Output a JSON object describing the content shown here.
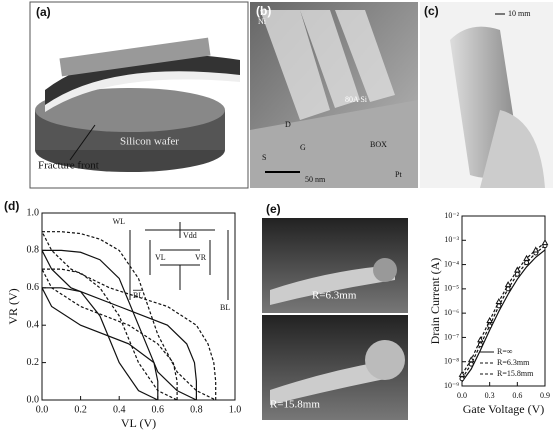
{
  "panels": {
    "a": {
      "label": "(a)",
      "wafer": "Silicon wafer",
      "front": "Fracture front"
    },
    "b": {
      "label": "(b)",
      "ni": "Ni",
      "si": "80A Si",
      "box": "BOX",
      "scale": "50 nm",
      "pt": "Pt",
      "g": "G",
      "s": "S",
      "d": "D"
    },
    "c": {
      "label": "(c)",
      "scale": "10 mm"
    },
    "e": {
      "label": "(e)",
      "r1": "R=6.3mm",
      "r2": "R=15.8mm"
    }
  },
  "chart_data": [
    {
      "type": "line",
      "label": "(d)",
      "xlabel": "VL (V)",
      "ylabel": "VR (V)",
      "annotations": {
        "wl": "WL",
        "bl": "BL",
        "blb": "BL",
        "vdd": "Vdd",
        "vl": "VL",
        "vr": "VR"
      },
      "xlim": [
        0,
        1
      ],
      "ylim": [
        0,
        1
      ],
      "xticks": [
        {
          "value": 0,
          "label": "0.0"
        },
        0.2,
        0.4,
        0.6,
        0.8,
        {
          "value": 1,
          "label": "1.0"
        }
      ],
      "yticks": [
        {
          "value": 0,
          "label": "0.0"
        },
        0.2,
        0.4,
        0.6,
        0.8,
        {
          "value": 1,
          "label": "1.0"
        }
      ],
      "series": [
        {
          "style": "solid",
          "color": "#111",
          "x": [
            0,
            0.1,
            0.2,
            0.3,
            0.4,
            0.5,
            0.6
          ],
          "values": [
            0.6,
            0.6,
            0.58,
            0.45,
            0.2,
            0.05,
            0
          ]
        },
        {
          "style": "solid",
          "color": "#111",
          "x": [
            0.6,
            0.6,
            0.58,
            0.45,
            0.2,
            0.05,
            0
          ],
          "values": [
            0,
            0.1,
            0.2,
            0.3,
            0.4,
            0.5,
            0.6
          ]
        },
        {
          "style": "dashed",
          "color": "#111",
          "x": [
            0,
            0.1,
            0.2,
            0.3,
            0.4,
            0.5,
            0.6,
            0.7
          ],
          "values": [
            0.7,
            0.7,
            0.68,
            0.6,
            0.45,
            0.2,
            0.05,
            0
          ]
        },
        {
          "style": "dashed",
          "color": "#111",
          "x": [
            0.7,
            0.7,
            0.68,
            0.6,
            0.45,
            0.2,
            0.05,
            0
          ],
          "values": [
            0,
            0.1,
            0.2,
            0.3,
            0.4,
            0.5,
            0.6,
            0.7
          ]
        },
        {
          "style": "solid",
          "color": "#111",
          "x": [
            0,
            0.1,
            0.2,
            0.3,
            0.4,
            0.5,
            0.6,
            0.7,
            0.8
          ],
          "values": [
            0.8,
            0.8,
            0.79,
            0.75,
            0.65,
            0.4,
            0.15,
            0.05,
            0
          ]
        },
        {
          "style": "solid",
          "color": "#111",
          "x": [
            0.8,
            0.8,
            0.79,
            0.75,
            0.65,
            0.4,
            0.15,
            0.05,
            0
          ],
          "values": [
            0,
            0.1,
            0.2,
            0.3,
            0.4,
            0.5,
            0.6,
            0.7,
            0.8
          ]
        },
        {
          "style": "dashed",
          "color": "#111",
          "x": [
            0,
            0.1,
            0.2,
            0.3,
            0.4,
            0.5,
            0.6,
            0.7,
            0.8,
            0.9
          ],
          "values": [
            0.9,
            0.9,
            0.89,
            0.86,
            0.8,
            0.65,
            0.35,
            0.15,
            0.05,
            0
          ]
        },
        {
          "style": "dashed",
          "color": "#111",
          "x": [
            0.9,
            0.9,
            0.89,
            0.86,
            0.8,
            0.65,
            0.35,
            0.15,
            0.05,
            0
          ],
          "values": [
            0,
            0.1,
            0.2,
            0.3,
            0.4,
            0.5,
            0.6,
            0.7,
            0.8,
            0.9
          ]
        }
      ]
    },
    {
      "type": "line",
      "log": true,
      "xlabel": "Gate Voltage (V)",
      "ylabel": "Drain Current (A)",
      "xlim": [
        0,
        0.9
      ],
      "ylim": [
        1e-09,
        0.01
      ],
      "xticks": [
        {
          "value": 0,
          "label": "0.0"
        },
        0.3,
        0.6,
        0.9
      ],
      "yticks": [
        {
          "value": 1e-09,
          "label": "10⁻⁹"
        },
        {
          "value": 1e-08,
          "label": "10⁻⁸"
        },
        {
          "value": 1e-07,
          "label": "10⁻⁷"
        },
        {
          "value": 1e-06,
          "label": "10⁻⁶"
        },
        {
          "value": 1e-05,
          "label": "10⁻⁵"
        },
        {
          "value": 0.0001,
          "label": "10⁻⁴"
        },
        {
          "value": 0.001,
          "label": "10⁻³"
        },
        {
          "value": 0.01,
          "label": "10⁻²"
        }
      ],
      "x": [
        0,
        0.1,
        0.2,
        0.3,
        0.4,
        0.5,
        0.6,
        0.7,
        0.8,
        0.9
      ],
      "series": [
        {
          "name": "R=∞",
          "style": "solid",
          "marker": "none",
          "color": "#111",
          "values": [
            1.5e-09,
            5e-09,
            3e-08,
            2e-07,
            1.2e-06,
            6e-06,
            2.5e-05,
            8e-05,
            0.0002,
            0.0004
          ]
        },
        {
          "name": "R=6.3mm",
          "style": "dashed",
          "marker": "circle",
          "color": "#111",
          "values": [
            2e-09,
            8e-09,
            5e-08,
            3e-07,
            2e-06,
            1e-05,
            4e-05,
            0.00012,
            0.0003,
            0.0006
          ]
        },
        {
          "name": "R=15.8mm",
          "style": "dashed",
          "marker": "triangle",
          "color": "#111",
          "values": [
            3e-09,
            1.2e-08,
            8e-08,
            5e-07,
            3e-06,
            1.5e-05,
            6e-05,
            0.00018,
            0.0004,
            0.0008
          ]
        }
      ]
    }
  ]
}
